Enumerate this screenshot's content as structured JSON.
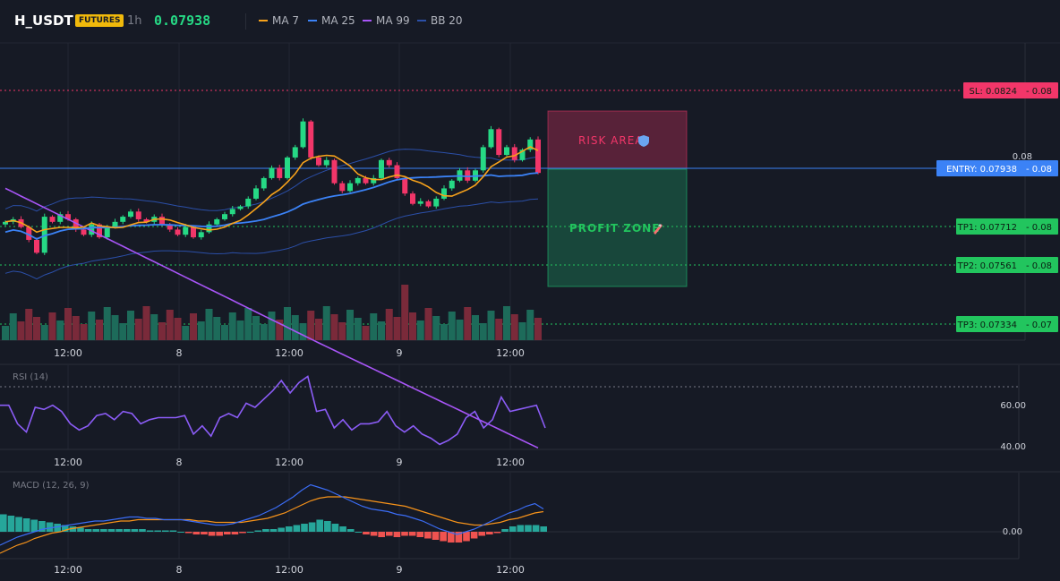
{
  "header": {
    "symbol": "H_USDT",
    "badge": "FUTURES",
    "timeframe": "1h",
    "price": "0.07938",
    "legend": [
      {
        "label": "MA 7",
        "color": "#f7a21b"
      },
      {
        "label": "MA 25",
        "color": "#3b82f6"
      },
      {
        "label": "MA 99",
        "color": "#a855f7"
      },
      {
        "label": "BB 20",
        "color": "#2b4fa8"
      }
    ]
  },
  "chart_data": {
    "type": "candlestick",
    "x_ticks": [
      "12:00",
      "8",
      "12:00",
      "9",
      "12:00"
    ],
    "price_axis": {
      "ticks": [
        "0.08"
      ]
    },
    "levels": [
      {
        "label": "SL: 0.0824",
        "axis": "0.08",
        "price": 0.0824,
        "color": "#f23669",
        "style": "dotted"
      },
      {
        "label": "ENTRY: 0.07938",
        "axis": "0.08",
        "price": 0.07938,
        "color": "#3b82f6",
        "style": "solid"
      },
      {
        "label": "TP1: 0.07712",
        "axis": "0.08",
        "price": 0.07712,
        "color": "#22c55e",
        "style": "dotted"
      },
      {
        "label": "TP2: 0.07561",
        "axis": "0.08",
        "price": 0.07561,
        "color": "#22c55e",
        "style": "dotted"
      },
      {
        "label": "TP3: 0.07334",
        "axis": "0.07",
        "price": 0.07334,
        "color": "#22c55e",
        "style": "dotted"
      }
    ],
    "zones": [
      {
        "label": "RISK AREA",
        "icon": "shield-icon",
        "from": 0.07938,
        "to": 0.0824,
        "color": "#f23669"
      },
      {
        "label": "PROFIT ZONE",
        "icon": "rocket-icon",
        "from": 0.07334,
        "to": 0.07938,
        "color": "#1fbf75"
      }
    ],
    "closes": [
      0.0773,
      0.0774,
      0.0771,
      0.0766,
      0.0761,
      0.0775,
      0.0773,
      0.0776,
      0.0774,
      0.077,
      0.0768,
      0.0772,
      0.0767,
      0.0771,
      0.0773,
      0.0775,
      0.0777,
      0.0774,
      0.0773,
      0.0775,
      0.0772,
      0.077,
      0.0768,
      0.0771,
      0.0767,
      0.0769,
      0.0772,
      0.0774,
      0.0776,
      0.0778,
      0.0779,
      0.0782,
      0.0786,
      0.079,
      0.0794,
      0.079,
      0.0798,
      0.0802,
      0.0812,
      0.0798,
      0.0795,
      0.0797,
      0.0788,
      0.0785,
      0.0788,
      0.079,
      0.0788,
      0.079,
      0.0797,
      0.0795,
      0.079,
      0.0784,
      0.078,
      0.0781,
      0.0779,
      0.0782,
      0.0786,
      0.0789,
      0.0793,
      0.0789,
      0.0793,
      0.0802,
      0.0809,
      0.0799,
      0.0802,
      0.0797,
      0.0801,
      0.0805,
      0.0792
    ]
  },
  "rsi": {
    "label": "RSI (14)",
    "axis_ticks": [
      "60.00",
      "40.00"
    ],
    "level": 70,
    "values": [
      61,
      61,
      52,
      48,
      60,
      59,
      61,
      58,
      52,
      49,
      51,
      56,
      57,
      54,
      58,
      57,
      52,
      54,
      55,
      55,
      55,
      56,
      47,
      51,
      46,
      55,
      57,
      55,
      62,
      60,
      64,
      68,
      73,
      67,
      72,
      75,
      58,
      59,
      50,
      54,
      49,
      52,
      52,
      53,
      58,
      51,
      48,
      51,
      47,
      45,
      42,
      44,
      47,
      55,
      58,
      50,
      54,
      65,
      58,
      59,
      60,
      61,
      50
    ]
  },
  "macd": {
    "label": "MACD (12, 26, 9)",
    "axis_ticks": [
      "0.00"
    ],
    "hist": [
      0.00013,
      0.00012,
      0.00011,
      0.0001,
      9e-05,
      8e-05,
      7e-05,
      6e-05,
      5e-05,
      4e-05,
      3e-05,
      2e-05,
      2e-05,
      2e-05,
      2e-05,
      2e-05,
      2e-05,
      2e-05,
      2e-05,
      1e-05,
      1e-05,
      1e-05,
      1e-05,
      0.0,
      -1e-05,
      -2e-05,
      -2e-05,
      -3e-05,
      -3e-05,
      -2e-05,
      -2e-05,
      -1e-05,
      0.0,
      1e-05,
      2e-05,
      2e-05,
      3e-05,
      4e-05,
      5e-05,
      6e-05,
      7e-05,
      9e-05,
      8e-05,
      6e-05,
      4e-05,
      2e-05,
      0.0,
      -2e-05,
      -3e-05,
      -4e-05,
      -3e-05,
      -4e-05,
      -3e-05,
      -3e-05,
      -4e-05,
      -5e-05,
      -6e-05,
      -7e-05,
      -8e-05,
      -8e-05,
      -7e-05,
      -5e-05,
      -3e-05,
      -2e-05,
      -1e-05,
      2e-05,
      4e-05,
      5e-05,
      5e-05,
      5e-05,
      4e-05
    ],
    "macd": [
      -0.0001,
      -7e-05,
      -4e-05,
      -2e-05,
      0.0,
      2e-05,
      3e-05,
      4e-05,
      5e-05,
      6e-05,
      7e-05,
      8e-05,
      8e-05,
      9e-05,
      0.0001,
      0.00011,
      0.00011,
      0.0001,
      0.0001,
      9e-05,
      9e-05,
      9e-05,
      8e-05,
      7e-05,
      6e-05,
      5e-05,
      5e-05,
      6e-05,
      8e-05,
      0.0001,
      0.00012,
      0.00015,
      0.00018,
      0.00022,
      0.00026,
      0.00031,
      0.00035,
      0.00033,
      0.00031,
      0.00028,
      0.00025,
      0.00022,
      0.00019,
      0.00017,
      0.00016,
      0.00015,
      0.00013,
      0.00012,
      0.0001,
      8e-05,
      5e-05,
      2e-05,
      0.0,
      -2e-05,
      0.0,
      2e-05,
      5e-05,
      8e-05,
      0.00011,
      0.00014,
      0.00016,
      0.00019,
      0.00021,
      0.00017
    ],
    "signal": [
      -0.00016,
      -0.00013,
      -0.0001,
      -8e-05,
      -5e-05,
      -3e-05,
      -1e-05,
      0.0,
      2e-05,
      3e-05,
      4e-05,
      5e-05,
      6e-05,
      7e-05,
      8e-05,
      8e-05,
      9e-05,
      9e-05,
      9e-05,
      9e-05,
      9e-05,
      9e-05,
      9e-05,
      8e-05,
      8e-05,
      7e-05,
      7e-05,
      7e-05,
      7e-05,
      8e-05,
      9e-05,
      0.0001,
      0.00012,
      0.00014,
      0.00017,
      0.0002,
      0.00023,
      0.00025,
      0.00026,
      0.00026,
      0.00026,
      0.00025,
      0.00024,
      0.00023,
      0.00022,
      0.00021,
      0.0002,
      0.00019,
      0.00017,
      0.00015,
      0.00013,
      0.00011,
      9e-05,
      7e-05,
      6e-05,
      5e-05,
      5e-05,
      6e-05,
      7e-05,
      9e-05,
      0.0001,
      0.00012,
      0.00014,
      0.00015
    ]
  }
}
